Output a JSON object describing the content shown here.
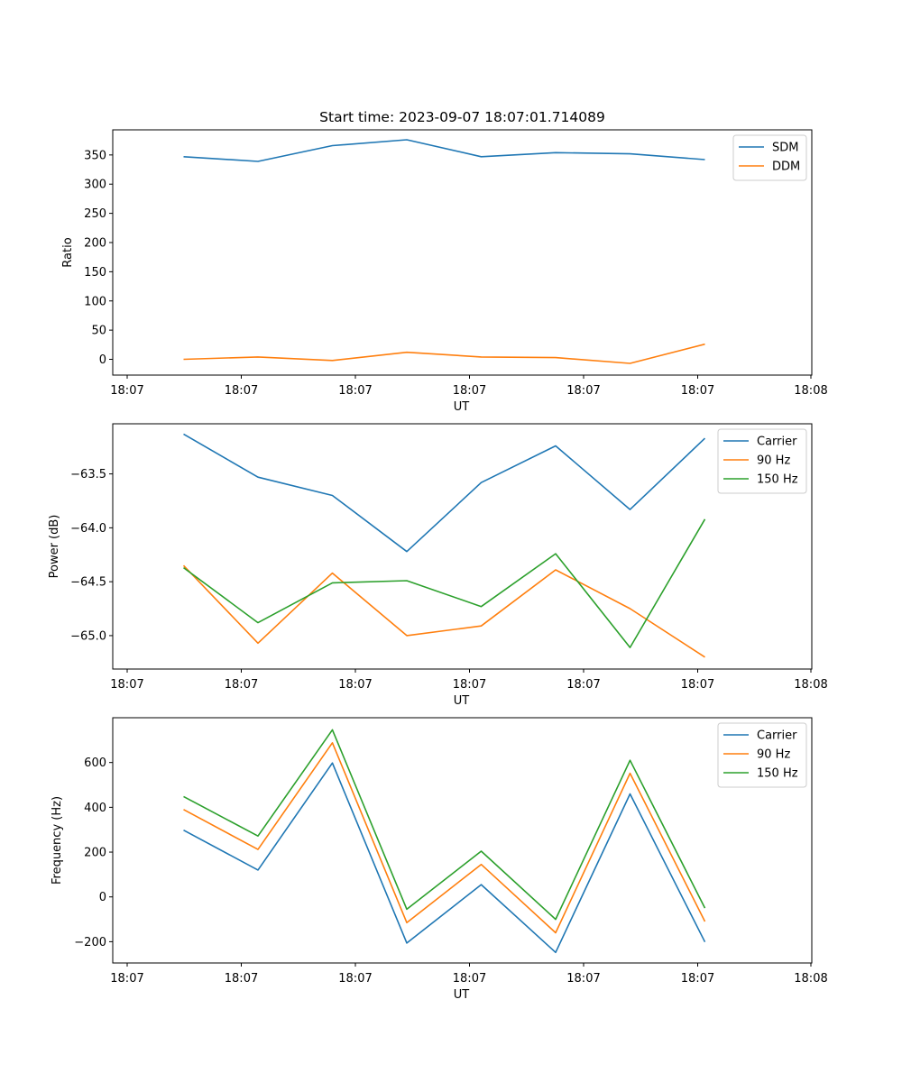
{
  "chart_data": [
    {
      "type": "line",
      "title": "Start time: 2023-09-07 18:07:01.714089",
      "xlabel": "UT",
      "ylabel": "Ratio",
      "x_tick_labels": [
        "18:07",
        "18:07",
        "18:07",
        "18:07",
        "18:07",
        "18:07",
        "18:07",
        "18:08"
      ],
      "y_ticks": [
        0,
        50,
        100,
        150,
        200,
        250,
        300,
        350
      ],
      "y_tick_labels": [
        "0",
        "50",
        "100",
        "150",
        "200",
        "250",
        "300",
        "350"
      ],
      "ylim": [
        -27,
        393
      ],
      "legend_position": "top-right",
      "series": [
        {
          "name": "SDM",
          "color": "#1f77b4",
          "values": [
            347,
            339,
            366,
            376,
            347,
            354,
            352,
            342
          ]
        },
        {
          "name": "DDM",
          "color": "#ff7f0e",
          "values": [
            0,
            4,
            -2,
            12,
            4,
            3,
            -7,
            26
          ]
        }
      ]
    },
    {
      "type": "line",
      "title": "",
      "xlabel": "UT",
      "ylabel": "Power (dB)",
      "x_tick_labels": [
        "18:07",
        "18:07",
        "18:07",
        "18:07",
        "18:07",
        "18:07",
        "18:07",
        "18:08"
      ],
      "y_ticks": [
        -65.0,
        -64.5,
        -64.0,
        -63.5
      ],
      "y_tick_labels": [
        "−65.0",
        "−64.5",
        "−64.0",
        "−63.5"
      ],
      "ylim": [
        -65.31,
        -63.035
      ],
      "legend_position": "top-right",
      "series": [
        {
          "name": "Carrier",
          "color": "#1f77b4",
          "values": [
            -63.13,
            -63.53,
            -63.7,
            -64.22,
            -63.58,
            -63.24,
            -63.83,
            -63.17
          ]
        },
        {
          "name": "90 Hz",
          "color": "#ff7f0e",
          "values": [
            -64.35,
            -65.07,
            -64.42,
            -65.0,
            -64.91,
            -64.39,
            -64.75,
            -65.2
          ]
        },
        {
          "name": "150 Hz",
          "color": "#2ca02c",
          "values": [
            -64.37,
            -64.88,
            -64.51,
            -64.49,
            -64.73,
            -64.24,
            -65.11,
            -63.92
          ]
        }
      ]
    },
    {
      "type": "line",
      "title": "",
      "xlabel": "UT",
      "ylabel": "Frequency (Hz)",
      "x_tick_labels": [
        "18:07",
        "18:07",
        "18:07",
        "18:07",
        "18:07",
        "18:07",
        "18:07",
        "18:08"
      ],
      "y_ticks": [
        -200,
        0,
        200,
        400,
        600
      ],
      "y_tick_labels": [
        "−200",
        "0",
        "200",
        "400",
        "600"
      ],
      "ylim": [
        -295,
        800
      ],
      "legend_position": "top-right",
      "series": [
        {
          "name": "Carrier",
          "color": "#1f77b4",
          "values": [
            298,
            120,
            598,
            -206,
            55,
            -248,
            460,
            -201
          ]
        },
        {
          "name": "90 Hz",
          "color": "#ff7f0e",
          "values": [
            390,
            212,
            688,
            -115,
            145,
            -160,
            552,
            -110
          ]
        },
        {
          "name": "150 Hz",
          "color": "#2ca02c",
          "values": [
            448,
            272,
            746,
            -55,
            204,
            -100,
            610,
            -50
          ]
        }
      ]
    }
  ]
}
